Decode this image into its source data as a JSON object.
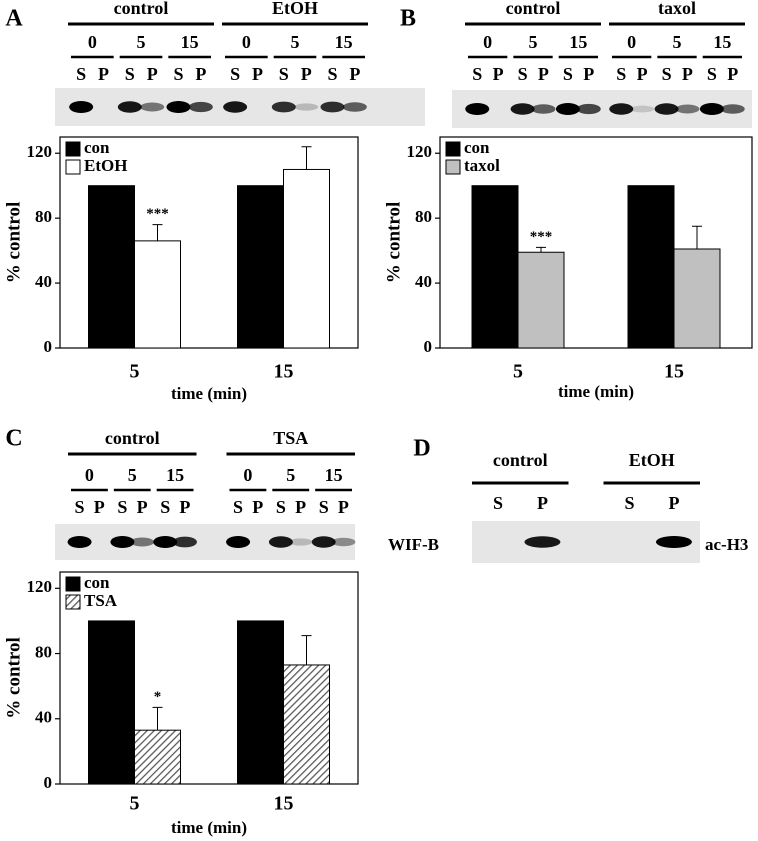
{
  "chart_data": [
    {
      "type": "bar",
      "panel": "A",
      "ylabel": "% control",
      "xlabel": "time (min)",
      "categories": [
        "5",
        "15"
      ],
      "series": [
        {
          "name": "con",
          "color": "#000000",
          "values": [
            100,
            100
          ]
        },
        {
          "name": "EtOH",
          "color": "#ffffff",
          "values": [
            66,
            110
          ],
          "errors": [
            10,
            14
          ],
          "annotations": [
            "***",
            null
          ]
        }
      ],
      "ylim": [
        0,
        130
      ],
      "yticks": [
        0,
        40,
        80,
        120
      ]
    },
    {
      "type": "bar",
      "panel": "B",
      "ylabel": "% control",
      "xlabel": "time (min)",
      "categories": [
        "5",
        "15"
      ],
      "series": [
        {
          "name": "con",
          "color": "#000000",
          "values": [
            100,
            100
          ]
        },
        {
          "name": "taxol",
          "color": "#c0c0c0",
          "values": [
            59,
            61
          ],
          "errors": [
            3,
            14
          ],
          "annotations": [
            "***",
            null
          ]
        }
      ],
      "ylim": [
        0,
        130
      ],
      "yticks": [
        0,
        40,
        80,
        120
      ]
    },
    {
      "type": "bar",
      "panel": "C",
      "ylabel": "% control",
      "xlabel": "time (min)",
      "categories": [
        "5",
        "15"
      ],
      "series": [
        {
          "name": "con",
          "color": "#000000",
          "values": [
            100,
            100
          ]
        },
        {
          "name": "TSA",
          "color": "#707070",
          "hatch": true,
          "values": [
            33,
            73
          ],
          "errors": [
            14,
            18
          ],
          "annotations": [
            "*",
            null
          ]
        }
      ],
      "ylim": [
        0,
        130
      ],
      "yticks": [
        0,
        40,
        80,
        120
      ]
    }
  ],
  "blots": [
    {
      "panel": "A",
      "groups": [
        {
          "label": "control",
          "times": [
            "0",
            "5",
            "15"
          ]
        },
        {
          "label": "EtOH",
          "times": [
            "0",
            "5",
            "15"
          ]
        }
      ],
      "lanes": [
        "S",
        "P"
      ]
    },
    {
      "panel": "B",
      "groups": [
        {
          "label": "control",
          "times": [
            "0",
            "5",
            "15"
          ]
        },
        {
          "label": "taxol",
          "times": [
            "0",
            "5",
            "15"
          ]
        }
      ],
      "lanes": [
        "S",
        "P"
      ]
    },
    {
      "panel": "C",
      "groups": [
        {
          "label": "control",
          "times": [
            "0",
            "5",
            "15"
          ]
        },
        {
          "label": "TSA",
          "times": [
            "0",
            "5",
            "15"
          ]
        }
      ],
      "lanes": [
        "S",
        "P"
      ]
    },
    {
      "panel": "D",
      "groups": [
        {
          "label": "control",
          "times": []
        },
        {
          "label": "EtOH",
          "times": []
        }
      ],
      "lanes": [
        "S",
        "P"
      ],
      "left_label": "WIF-B",
      "right_label": "ac-H3"
    }
  ]
}
